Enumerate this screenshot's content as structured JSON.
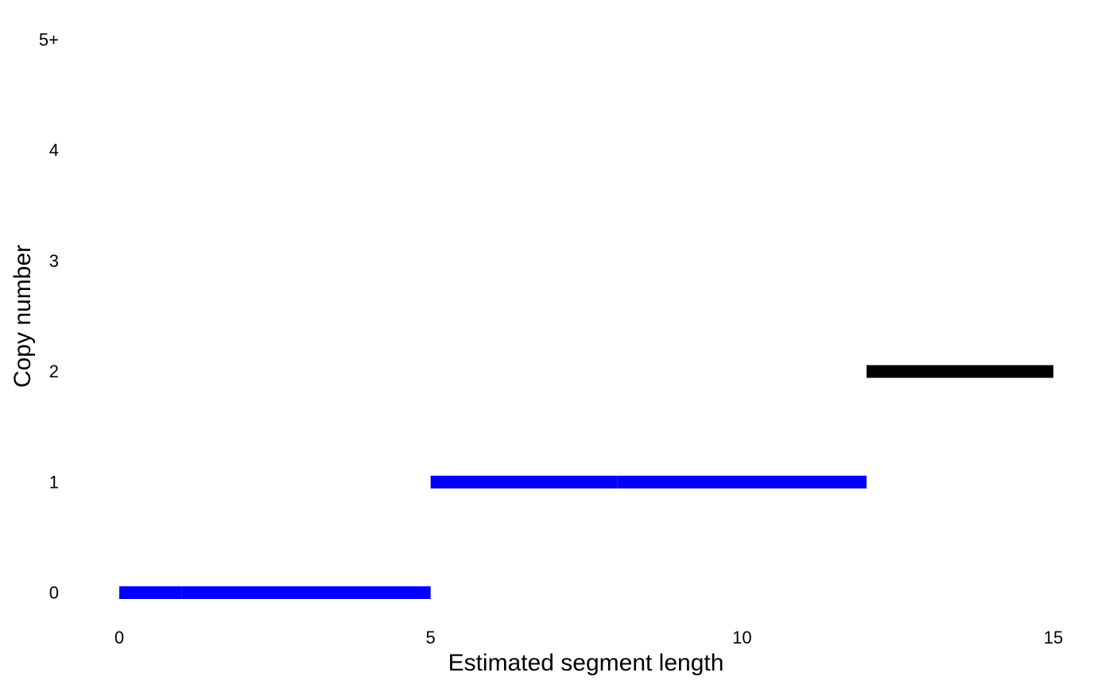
{
  "chart_data": {
    "type": "segment",
    "title": "",
    "xlabel": "Estimated segment length",
    "ylabel": "Copy number",
    "xlim": [
      0,
      15
    ],
    "x_ticks": [
      0,
      5,
      10,
      15
    ],
    "y_ticks": [
      {
        "value": 0,
        "label": "0"
      },
      {
        "value": 1,
        "label": "1"
      },
      {
        "value": 2,
        "label": "2"
      },
      {
        "value": 3,
        "label": "3"
      },
      {
        "value": 4,
        "label": "4"
      },
      {
        "value": 5,
        "label": "5+"
      }
    ],
    "grid": false,
    "legend": "none",
    "segments": [
      {
        "x_start": 0,
        "x_end": 1,
        "copy_number": 0,
        "color": "#0000ff"
      },
      {
        "x_start": 1,
        "x_end": 5,
        "copy_number": 0,
        "color": "#0000ff"
      },
      {
        "x_start": 5,
        "x_end": 8,
        "copy_number": 1,
        "color": "#0000ff"
      },
      {
        "x_start": 8,
        "x_end": 12,
        "copy_number": 1,
        "color": "#0000ff"
      },
      {
        "x_start": 12,
        "x_end": 15,
        "copy_number": 2,
        "color": "#000000"
      }
    ]
  }
}
